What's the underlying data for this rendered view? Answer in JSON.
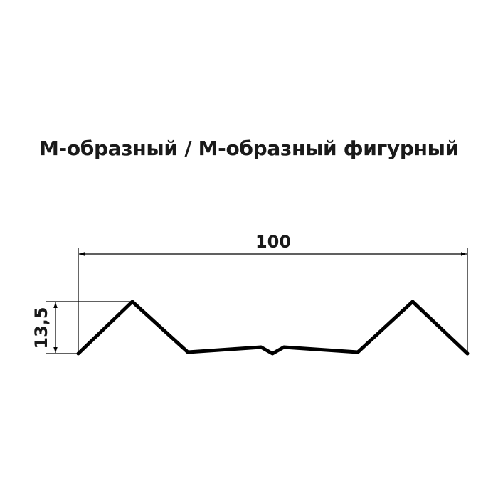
{
  "title": "М-образный / М-образный фигурный",
  "dimensions": {
    "width_label": "100",
    "height_label": "13,5"
  },
  "colors": {
    "line": "#000000",
    "text": "#1a1a1a"
  }
}
